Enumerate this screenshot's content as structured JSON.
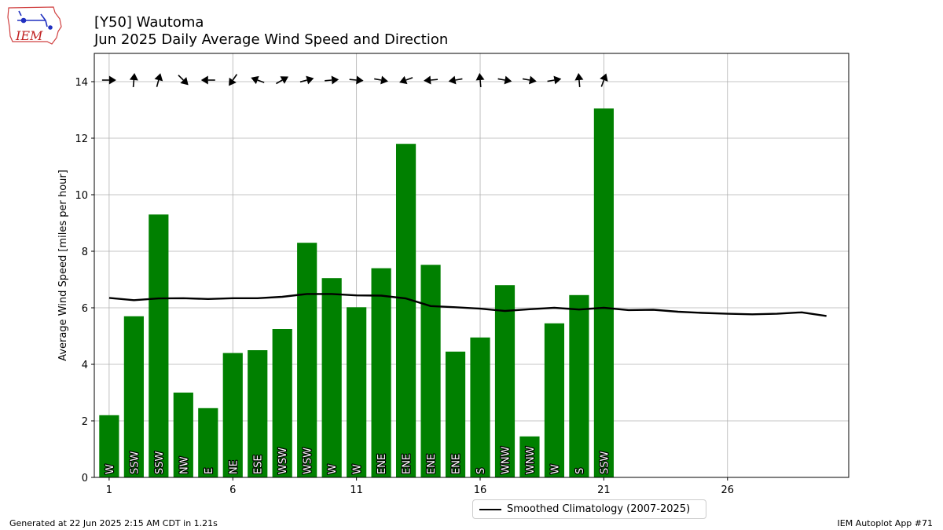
{
  "header": {
    "title": "[Y50] Wautoma",
    "subtitle": "Jun 2025 Daily Average Wind Speed and Direction"
  },
  "logo": {
    "text": "IEM",
    "icon": "iem-iowa-state-logo"
  },
  "footer": {
    "left": "Generated at 22 Jun 2025 2:15 AM CDT in 1.21s",
    "right": "IEM Autoplot App #71"
  },
  "legend": {
    "label": "Smoothed Climatology (2007-2025)"
  },
  "colors": {
    "bar": "#008000",
    "climo": "#000000",
    "grid": "#b0b0b0",
    "arrow": "#000000"
  },
  "chart_data": {
    "type": "bar",
    "ylabel": "Average Wind Speed [miles per hour]",
    "xlabel": "",
    "ylim": [
      0,
      15
    ],
    "xlim": [
      0.4,
      30.9
    ],
    "xticks": [
      1,
      6,
      11,
      16,
      21,
      26
    ],
    "yticks": [
      0,
      2,
      4,
      6,
      8,
      10,
      12,
      14
    ],
    "grid": true,
    "legend_position": "bottom-center",
    "bars": {
      "days": [
        1,
        2,
        3,
        4,
        5,
        6,
        7,
        8,
        9,
        10,
        11,
        12,
        13,
        14,
        15,
        16,
        17,
        18,
        19,
        20,
        21
      ],
      "values": [
        2.2,
        5.7,
        9.3,
        3.0,
        2.45,
        4.4,
        4.5,
        5.25,
        8.3,
        7.05,
        6.02,
        7.4,
        11.8,
        7.52,
        4.45,
        4.95,
        6.8,
        1.45,
        5.45,
        6.45,
        13.05
      ],
      "directions": [
        "W",
        "SSW",
        "SSW",
        "NW",
        "E",
        "NE",
        "ESE",
        "WSW",
        "WSW",
        "W",
        "W",
        "ENE",
        "ENE",
        "ENE",
        "ENE",
        "S",
        "WNW",
        "WNW",
        "W",
        "S",
        "SSW"
      ]
    },
    "arrows": {
      "y": 14,
      "days": [
        1,
        2,
        3,
        4,
        5,
        6,
        7,
        8,
        9,
        10,
        11,
        12,
        13,
        14,
        15,
        16,
        17,
        18,
        19,
        20,
        21
      ],
      "bearing_deg": [
        90,
        5,
        15,
        135,
        270,
        215,
        290,
        60,
        75,
        85,
        95,
        100,
        250,
        265,
        260,
        355,
        100,
        100,
        80,
        355,
        20
      ]
    },
    "series": [
      {
        "name": "Smoothed Climatology (2007-2025)",
        "type": "line",
        "x": [
          1,
          2,
          3,
          4,
          5,
          6,
          7,
          8,
          9,
          10,
          11,
          12,
          13,
          14,
          15,
          16,
          17,
          18,
          19,
          20,
          21,
          22,
          23,
          24,
          25,
          26,
          27,
          28,
          29,
          30
        ],
        "values": [
          6.35,
          6.27,
          6.33,
          6.34,
          6.31,
          6.34,
          6.34,
          6.39,
          6.49,
          6.49,
          6.44,
          6.43,
          6.33,
          6.06,
          6.02,
          5.97,
          5.89,
          5.95,
          6.0,
          5.94,
          6.0,
          5.92,
          5.93,
          5.86,
          5.82,
          5.79,
          5.77,
          5.79,
          5.84,
          5.71
        ]
      }
    ]
  }
}
